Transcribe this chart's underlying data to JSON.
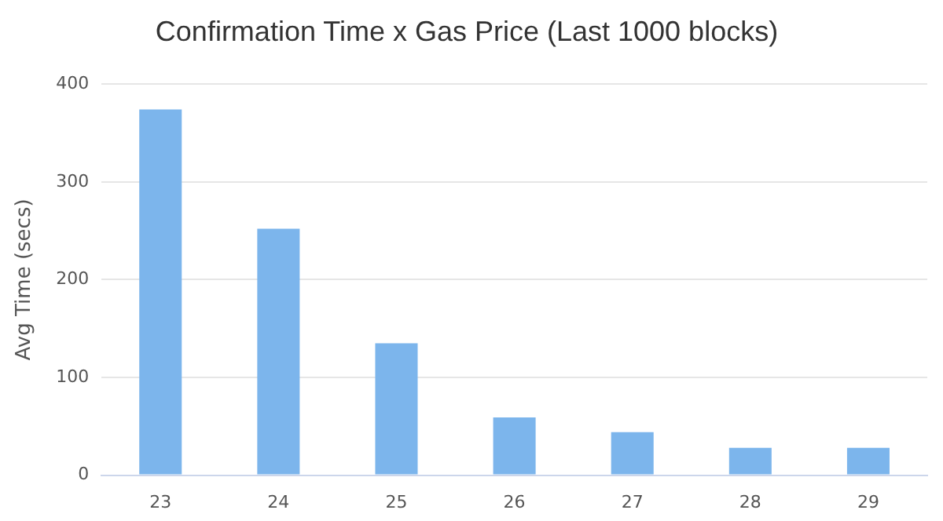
{
  "chart_data": {
    "type": "bar",
    "title": "Confirmation Time x Gas Price (Last 1000 blocks)",
    "ylabel": "Avg Time (secs)",
    "categories": [
      "23",
      "24",
      "25",
      "26",
      "27",
      "28",
      "29"
    ],
    "values": [
      374,
      252,
      135,
      59,
      44,
      28,
      28
    ],
    "color": "#7cb5ec",
    "ylim": [
      0,
      400
    ],
    "yticks": [
      0,
      100,
      200,
      300,
      400
    ],
    "grid": "y",
    "legend": false
  }
}
